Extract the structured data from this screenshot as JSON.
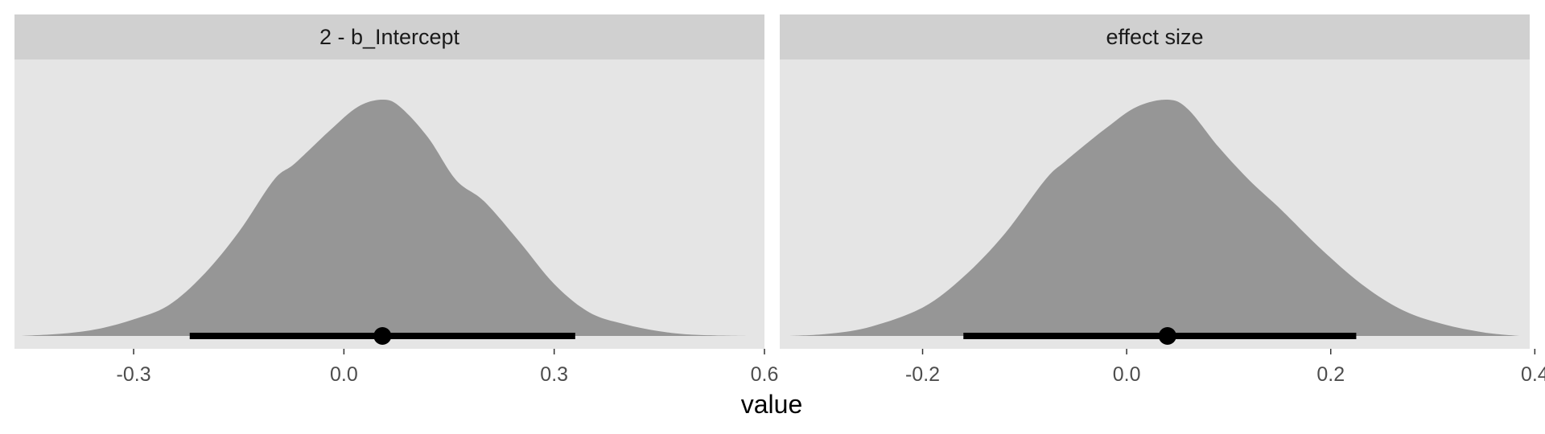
{
  "chart_data": {
    "type": "density",
    "xlabel": "value",
    "ylabel": "",
    "grid": false,
    "colors": {
      "panel_bg": "#e5e5e5",
      "strip_bg": "#d0d0d0",
      "density_fill": "#969696",
      "interval": "#000000",
      "tick_text": "#4d4d4d"
    },
    "panels": [
      {
        "title": "2 - b_Intercept",
        "xlim": [
          -0.47,
          0.6
        ],
        "xticks": [
          -0.3,
          0.0,
          0.3,
          0.6
        ],
        "xtick_labels": [
          "-0.3",
          "0.0",
          "0.3",
          "0.6"
        ],
        "point_estimate": 0.055,
        "interval": [
          -0.22,
          0.33
        ],
        "density": {
          "x": [
            -0.46,
            -0.4,
            -0.35,
            -0.3,
            -0.25,
            -0.2,
            -0.15,
            -0.1,
            -0.07,
            -0.02,
            0.02,
            0.055,
            0.08,
            0.12,
            0.16,
            0.2,
            0.25,
            0.3,
            0.35,
            0.4,
            0.45,
            0.5,
            0.58
          ],
          "y": [
            0.0,
            0.01,
            0.03,
            0.07,
            0.13,
            0.26,
            0.44,
            0.66,
            0.73,
            0.87,
            0.97,
            1.0,
            0.97,
            0.84,
            0.66,
            0.57,
            0.4,
            0.22,
            0.1,
            0.05,
            0.02,
            0.005,
            0.0
          ]
        }
      },
      {
        "title": "effect size",
        "xlim": [
          -0.34,
          0.395
        ],
        "xticks": [
          -0.2,
          0.0,
          0.2,
          0.4
        ],
        "xtick_labels": [
          "-0.2",
          "0.0",
          "0.2",
          "0.4"
        ],
        "point_estimate": 0.04,
        "interval": [
          -0.16,
          0.225
        ],
        "density": {
          "x": [
            -0.33,
            -0.29,
            -0.25,
            -0.2,
            -0.16,
            -0.12,
            -0.08,
            -0.06,
            -0.02,
            0.01,
            0.04,
            0.06,
            0.09,
            0.12,
            0.15,
            0.19,
            0.23,
            0.27,
            0.31,
            0.35,
            0.385
          ],
          "y": [
            0.0,
            0.01,
            0.04,
            0.12,
            0.25,
            0.43,
            0.66,
            0.74,
            0.88,
            0.97,
            1.0,
            0.96,
            0.8,
            0.66,
            0.54,
            0.37,
            0.22,
            0.11,
            0.05,
            0.015,
            0.0
          ]
        }
      }
    ]
  }
}
